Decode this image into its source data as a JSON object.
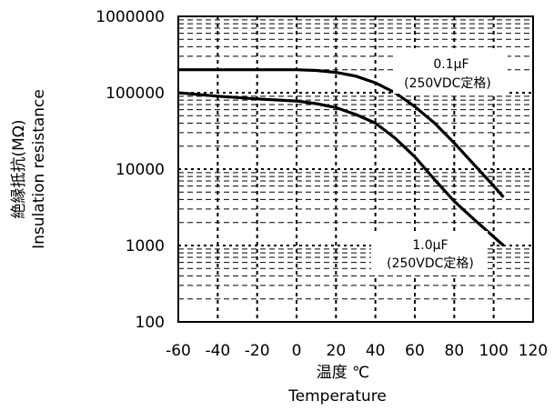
{
  "chart_data": {
    "type": "line",
    "xlabel": "温度 ℃",
    "xlabel_en": "Temperature",
    "ylabel": "絶縁抵抗(MΩ)",
    "ylabel_en": "Insulation resistance",
    "xlim": [
      -60,
      120
    ],
    "ylim": [
      100,
      1000000
    ],
    "yscale": "log",
    "grid": true,
    "x_ticks": [
      "-60",
      "-40",
      "-20",
      "0",
      "20",
      "40",
      "60",
      "80",
      "100",
      "120"
    ],
    "y_ticks": [
      "100",
      "1000",
      "10000",
      "100000",
      "1000000"
    ],
    "x_tick_values": [
      -60,
      -40,
      -20,
      0,
      20,
      40,
      60,
      80,
      100,
      120
    ],
    "y_tick_values": [
      100,
      1000,
      10000,
      100000,
      1000000
    ],
    "series": [
      {
        "name": "0.1μF (250VDC定格)",
        "label_line1": "0.1μF",
        "label_line2": "(250VDC定格)",
        "x": [
          -60,
          -40,
          -20,
          0,
          10,
          20,
          30,
          40,
          50,
          60,
          70,
          80,
          90,
          100,
          105
        ],
        "y": [
          200000,
          200000,
          200000,
          200000,
          196000,
          185000,
          165000,
          135000,
          100000,
          66000,
          40000,
          22000,
          11500,
          6000,
          4300
        ]
      },
      {
        "name": "1.0μF (250VDC定格)",
        "label_line1": "1.0μF",
        "label_line2": "(250VDC定格)",
        "x": [
          -60,
          -40,
          -20,
          0,
          10,
          20,
          30,
          40,
          50,
          60,
          70,
          80,
          90,
          100,
          105
        ],
        "y": [
          100000,
          90000,
          83000,
          78000,
          72000,
          64000,
          52000,
          40000,
          25500,
          14500,
          7300,
          3800,
          2200,
          1300,
          1000
        ]
      }
    ]
  }
}
